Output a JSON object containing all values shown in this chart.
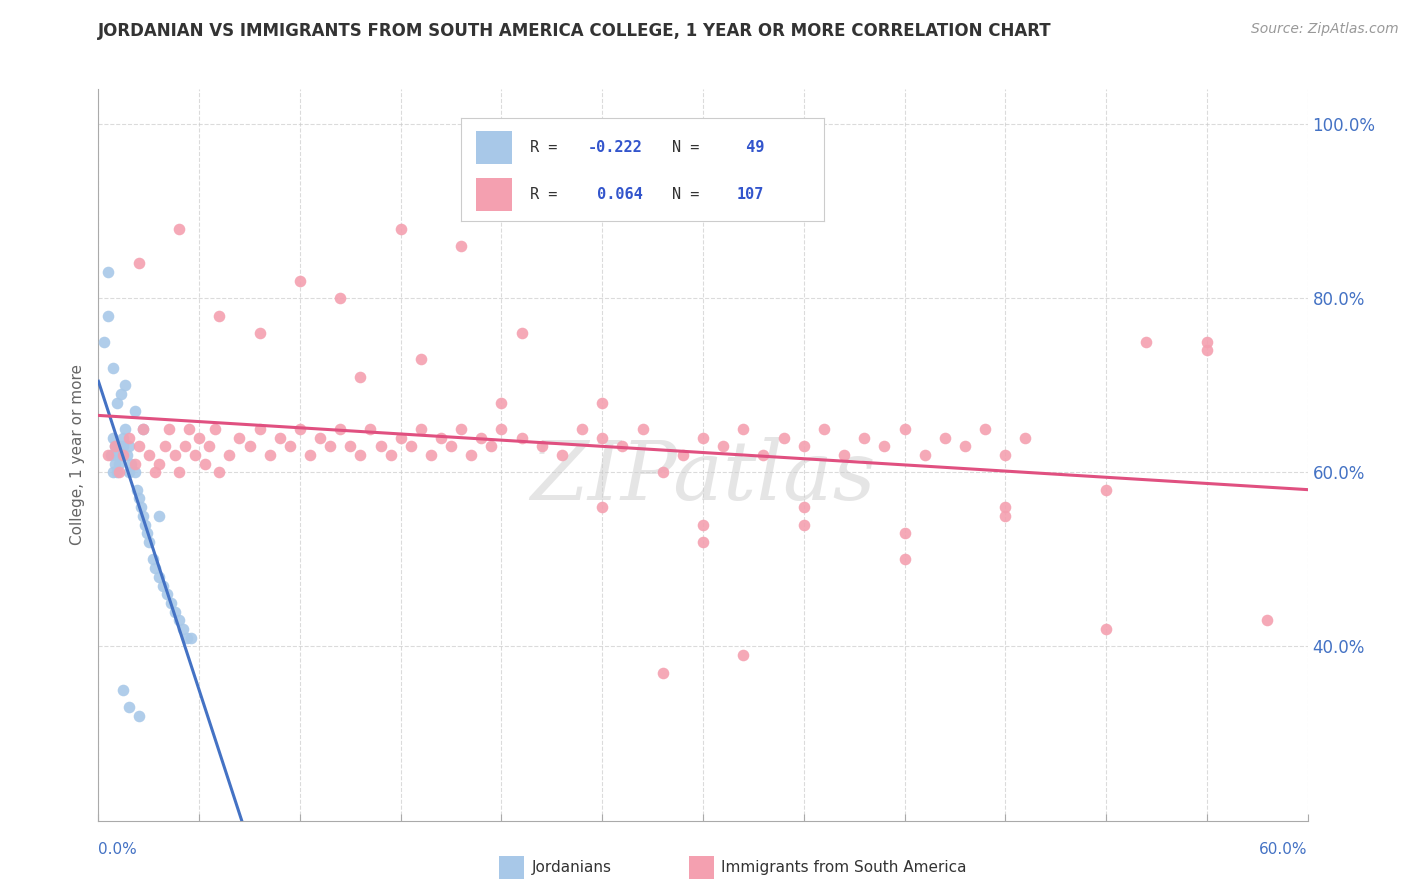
{
  "title": "JORDANIAN VS IMMIGRANTS FROM SOUTH AMERICA COLLEGE, 1 YEAR OR MORE CORRELATION CHART",
  "source": "Source: ZipAtlas.com",
  "ylabel": "College, 1 year or more",
  "blue_color": "#A8C8E8",
  "pink_color": "#F4A0B0",
  "blue_line_color": "#4472C4",
  "pink_line_color": "#E05080",
  "watermark": "ZIPatlas",
  "background": "#FFFFFF",
  "xlim": [
    0.0,
    0.6
  ],
  "ylim": [
    0.2,
    1.04
  ],
  "ytick_positions": [
    0.4,
    0.6,
    0.8,
    1.0
  ],
  "ytick_labels": [
    "40.0%",
    "60.0%",
    "80.0%",
    "100.0%"
  ],
  "xtick_positions": [
    0.0,
    0.05,
    0.1,
    0.15,
    0.2,
    0.25,
    0.3,
    0.35,
    0.4,
    0.45,
    0.5,
    0.55,
    0.6
  ],
  "grid_color": "#CCCCCC",
  "legend_r1_val": "-0.222",
  "legend_n1_val": "49",
  "legend_r2_val": "0.064",
  "legend_n2_val": "107",
  "blue_x": [
    0.003,
    0.005,
    0.006,
    0.007,
    0.007,
    0.008,
    0.008,
    0.009,
    0.009,
    0.01,
    0.01,
    0.011,
    0.012,
    0.012,
    0.013,
    0.014,
    0.015,
    0.015,
    0.016,
    0.018,
    0.019,
    0.02,
    0.021,
    0.022,
    0.023,
    0.024,
    0.025,
    0.027,
    0.028,
    0.03,
    0.032,
    0.034,
    0.036,
    0.038,
    0.04,
    0.042,
    0.044,
    0.046,
    0.005,
    0.007,
    0.009,
    0.011,
    0.013,
    0.018,
    0.022,
    0.03,
    0.012,
    0.015,
    0.02
  ],
  "blue_y": [
    0.75,
    0.78,
    0.62,
    0.6,
    0.64,
    0.61,
    0.63,
    0.6,
    0.62,
    0.61,
    0.63,
    0.62,
    0.64,
    0.63,
    0.65,
    0.62,
    0.6,
    0.63,
    0.61,
    0.6,
    0.58,
    0.57,
    0.56,
    0.55,
    0.54,
    0.53,
    0.52,
    0.5,
    0.49,
    0.48,
    0.47,
    0.46,
    0.45,
    0.44,
    0.43,
    0.42,
    0.41,
    0.41,
    0.83,
    0.72,
    0.68,
    0.69,
    0.7,
    0.67,
    0.65,
    0.55,
    0.35,
    0.33,
    0.32
  ],
  "pink_x": [
    0.005,
    0.008,
    0.01,
    0.012,
    0.015,
    0.018,
    0.02,
    0.022,
    0.025,
    0.028,
    0.03,
    0.033,
    0.035,
    0.038,
    0.04,
    0.043,
    0.045,
    0.048,
    0.05,
    0.053,
    0.055,
    0.058,
    0.06,
    0.065,
    0.07,
    0.075,
    0.08,
    0.085,
    0.09,
    0.095,
    0.1,
    0.105,
    0.11,
    0.115,
    0.12,
    0.125,
    0.13,
    0.135,
    0.14,
    0.145,
    0.15,
    0.155,
    0.16,
    0.165,
    0.17,
    0.175,
    0.18,
    0.185,
    0.19,
    0.195,
    0.2,
    0.21,
    0.22,
    0.23,
    0.24,
    0.25,
    0.26,
    0.27,
    0.28,
    0.29,
    0.3,
    0.31,
    0.32,
    0.33,
    0.34,
    0.35,
    0.36,
    0.37,
    0.38,
    0.39,
    0.4,
    0.41,
    0.42,
    0.43,
    0.44,
    0.45,
    0.46,
    0.5,
    0.52,
    0.55,
    0.58,
    0.02,
    0.04,
    0.06,
    0.08,
    0.1,
    0.12,
    0.15,
    0.18,
    0.21,
    0.25,
    0.3,
    0.35,
    0.4,
    0.45,
    0.5,
    0.55,
    0.13,
    0.16,
    0.2,
    0.25,
    0.3,
    0.35,
    0.4,
    0.45,
    0.32,
    0.28
  ],
  "pink_y": [
    0.62,
    0.63,
    0.6,
    0.62,
    0.64,
    0.61,
    0.63,
    0.65,
    0.62,
    0.6,
    0.61,
    0.63,
    0.65,
    0.62,
    0.6,
    0.63,
    0.65,
    0.62,
    0.64,
    0.61,
    0.63,
    0.65,
    0.6,
    0.62,
    0.64,
    0.63,
    0.65,
    0.62,
    0.64,
    0.63,
    0.65,
    0.62,
    0.64,
    0.63,
    0.65,
    0.63,
    0.62,
    0.65,
    0.63,
    0.62,
    0.64,
    0.63,
    0.65,
    0.62,
    0.64,
    0.63,
    0.65,
    0.62,
    0.64,
    0.63,
    0.65,
    0.64,
    0.63,
    0.62,
    0.65,
    0.64,
    0.63,
    0.65,
    0.6,
    0.62,
    0.64,
    0.63,
    0.65,
    0.62,
    0.64,
    0.63,
    0.65,
    0.62,
    0.64,
    0.63,
    0.65,
    0.62,
    0.64,
    0.63,
    0.65,
    0.62,
    0.64,
    0.42,
    0.75,
    0.75,
    0.43,
    0.84,
    0.88,
    0.78,
    0.76,
    0.82,
    0.8,
    0.88,
    0.86,
    0.76,
    0.68,
    0.52,
    0.54,
    0.5,
    0.56,
    0.58,
    0.74,
    0.71,
    0.73,
    0.68,
    0.56,
    0.54,
    0.56,
    0.53,
    0.55,
    0.39,
    0.37
  ]
}
